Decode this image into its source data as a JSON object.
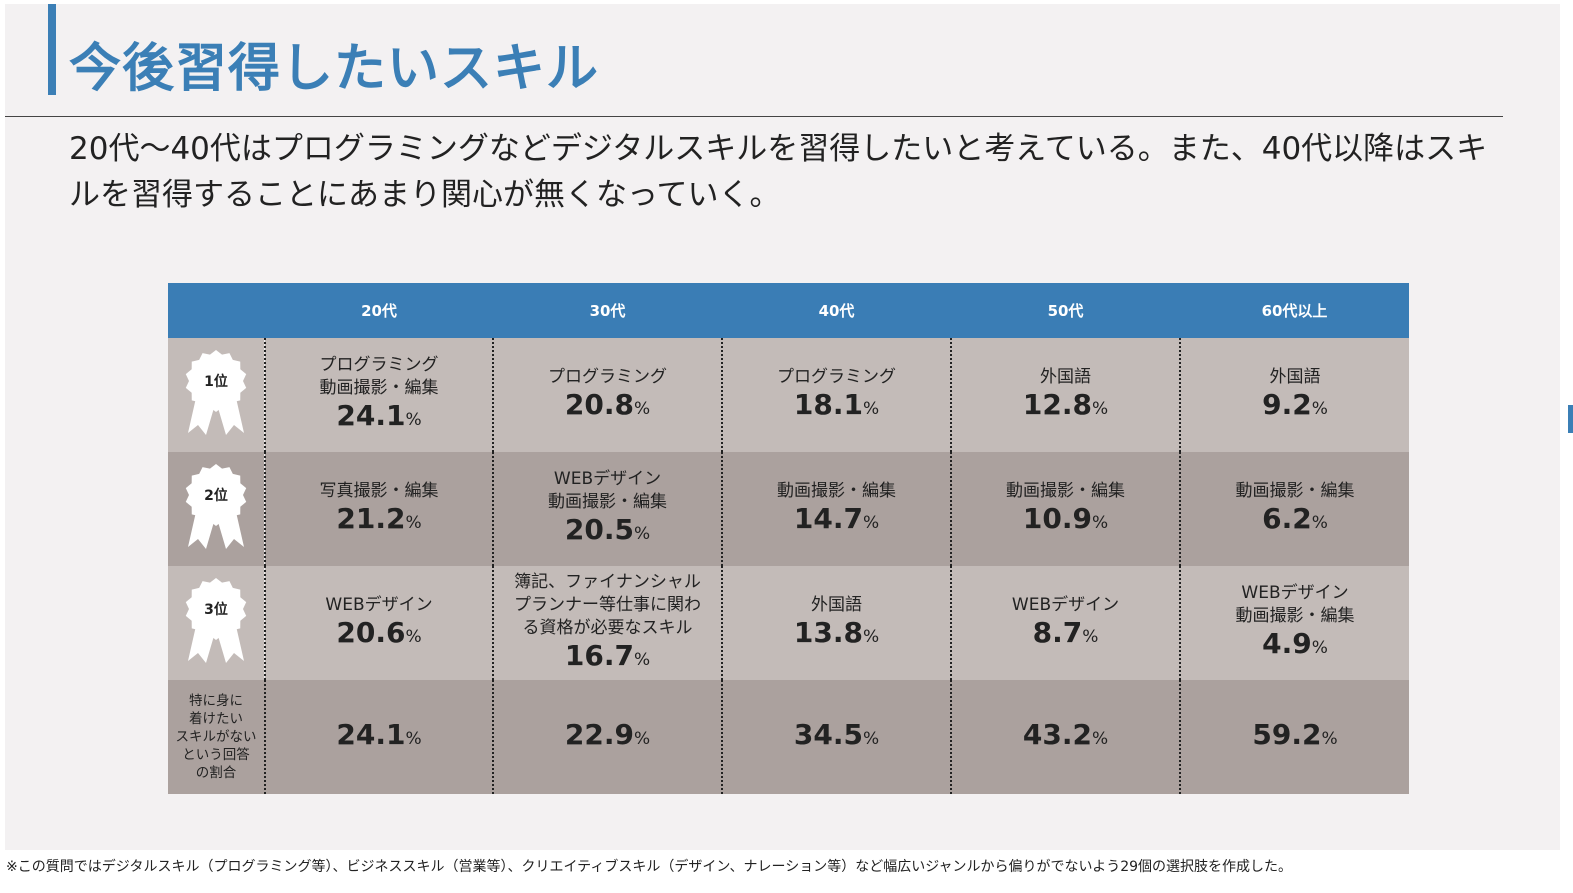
{
  "page": {
    "title": "今後習得したいスキル",
    "lead": "20代〜40代はプログラミングなどデジタルスキルを習得したいと考えている。また、40代以降はスキルを習得することにあまり関心が無くなっていく。",
    "footnote": "※この質問ではデジタルスキル（プログラミング等）、ビジネススキル（営業等）、クリエイティブスキル（デザイン、ナレーション等）など幅広いジャンルから偏りがでないよう29個の選択肢を作成した。"
  },
  "colors": {
    "accent": "#3b7fb6",
    "header_bg": "#3a7db5",
    "row_light": "#c3bbb8",
    "row_dark": "#aba19e",
    "badge_fill": "#ffffff"
  },
  "table": {
    "columns": [
      "20代",
      "30代",
      "40代",
      "50代",
      "60代以上"
    ],
    "pct_sign": "%",
    "ranks": [
      {
        "label": "1位",
        "cells": [
          {
            "skills": [
              "プログラミング",
              "動画撮影・編集"
            ],
            "value": "24.1"
          },
          {
            "skills": [
              "プログラミング"
            ],
            "value": "20.8"
          },
          {
            "skills": [
              "プログラミング"
            ],
            "value": "18.1"
          },
          {
            "skills": [
              "外国語"
            ],
            "value": "12.8"
          },
          {
            "skills": [
              "外国語"
            ],
            "value": "9.2"
          }
        ]
      },
      {
        "label": "2位",
        "cells": [
          {
            "skills": [
              "写真撮影・編集"
            ],
            "value": "21.2"
          },
          {
            "skills": [
              "WEBデザイン",
              "動画撮影・編集"
            ],
            "value": "20.5"
          },
          {
            "skills": [
              "動画撮影・編集"
            ],
            "value": "14.7"
          },
          {
            "skills": [
              "動画撮影・編集"
            ],
            "value": "10.9"
          },
          {
            "skills": [
              "動画撮影・編集"
            ],
            "value": "6.2"
          }
        ]
      },
      {
        "label": "3位",
        "cells": [
          {
            "skills": [
              "WEBデザイン"
            ],
            "value": "20.6"
          },
          {
            "skills": [
              "簿記、ファイナンシャル",
              "プランナー等仕事に関わ",
              "る資格が必要なスキル"
            ],
            "value": "16.7"
          },
          {
            "skills": [
              "外国語"
            ],
            "value": "13.8"
          },
          {
            "skills": [
              "WEBデザイン"
            ],
            "value": "8.7"
          },
          {
            "skills": [
              "WEBデザイン",
              "動画撮影・編集"
            ],
            "value": "4.9"
          }
        ]
      }
    ],
    "none_row": {
      "label_lines": [
        "特に身に",
        "着けたい",
        "スキルがない",
        "という回答",
        "の割合"
      ],
      "values": [
        "24.1",
        "22.9",
        "34.5",
        "43.2",
        "59.2"
      ]
    }
  }
}
